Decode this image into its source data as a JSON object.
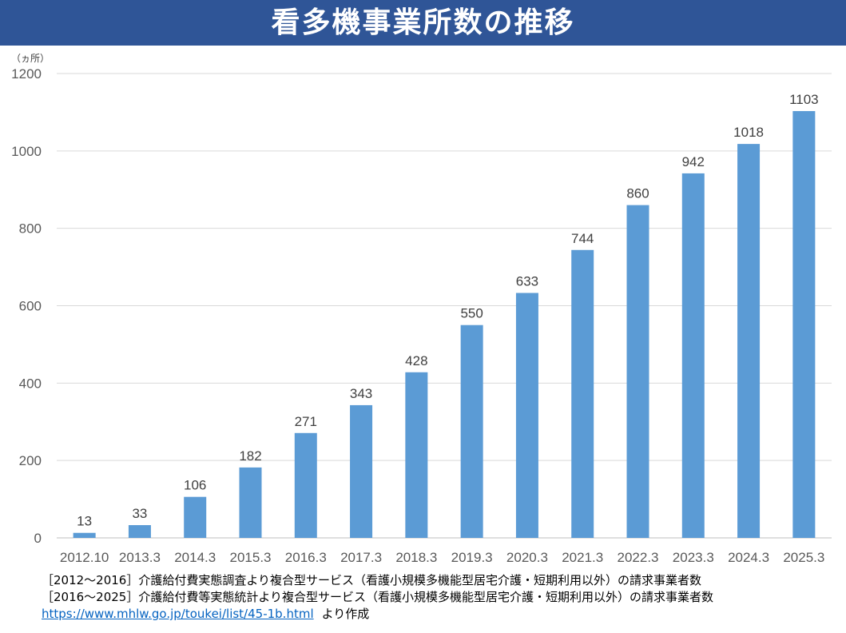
{
  "title": "看多機事業所数の推移",
  "chart_data": {
    "type": "bar",
    "title": "看多機事業所数の推移",
    "unit_label": "（ヵ所）",
    "categories": [
      "2012.10",
      "2013.3",
      "2014.3",
      "2015.3",
      "2016.3",
      "2017.3",
      "2018.3",
      "2019.3",
      "2020.3",
      "2021.3",
      "2022.3",
      "2023.3",
      "2024.3",
      "2025.3"
    ],
    "values": [
      13,
      33,
      106,
      182,
      271,
      343,
      428,
      550,
      633,
      744,
      860,
      942,
      1018,
      1103
    ],
    "ylim": [
      0,
      1200
    ],
    "yticks": [
      0,
      200,
      400,
      600,
      800,
      1000,
      1200
    ],
    "grid": true,
    "bar_color": "#5B9BD5",
    "data_labels": true
  },
  "notes": {
    "line1": "［2012～2016］介護給付費実態調査より複合型サービス（看護小規模多機能型居宅介護・短期利用以外）の請求事業者数",
    "line2": "［2016～2025］介護給付費等実態統計より複合型サービス（看護小規模多機能型居宅介護・短期利用以外）の請求事業者数",
    "link": "https://www.mhlw.go.jp/toukei/list/45-1b.html",
    "suffix": "より作成"
  }
}
